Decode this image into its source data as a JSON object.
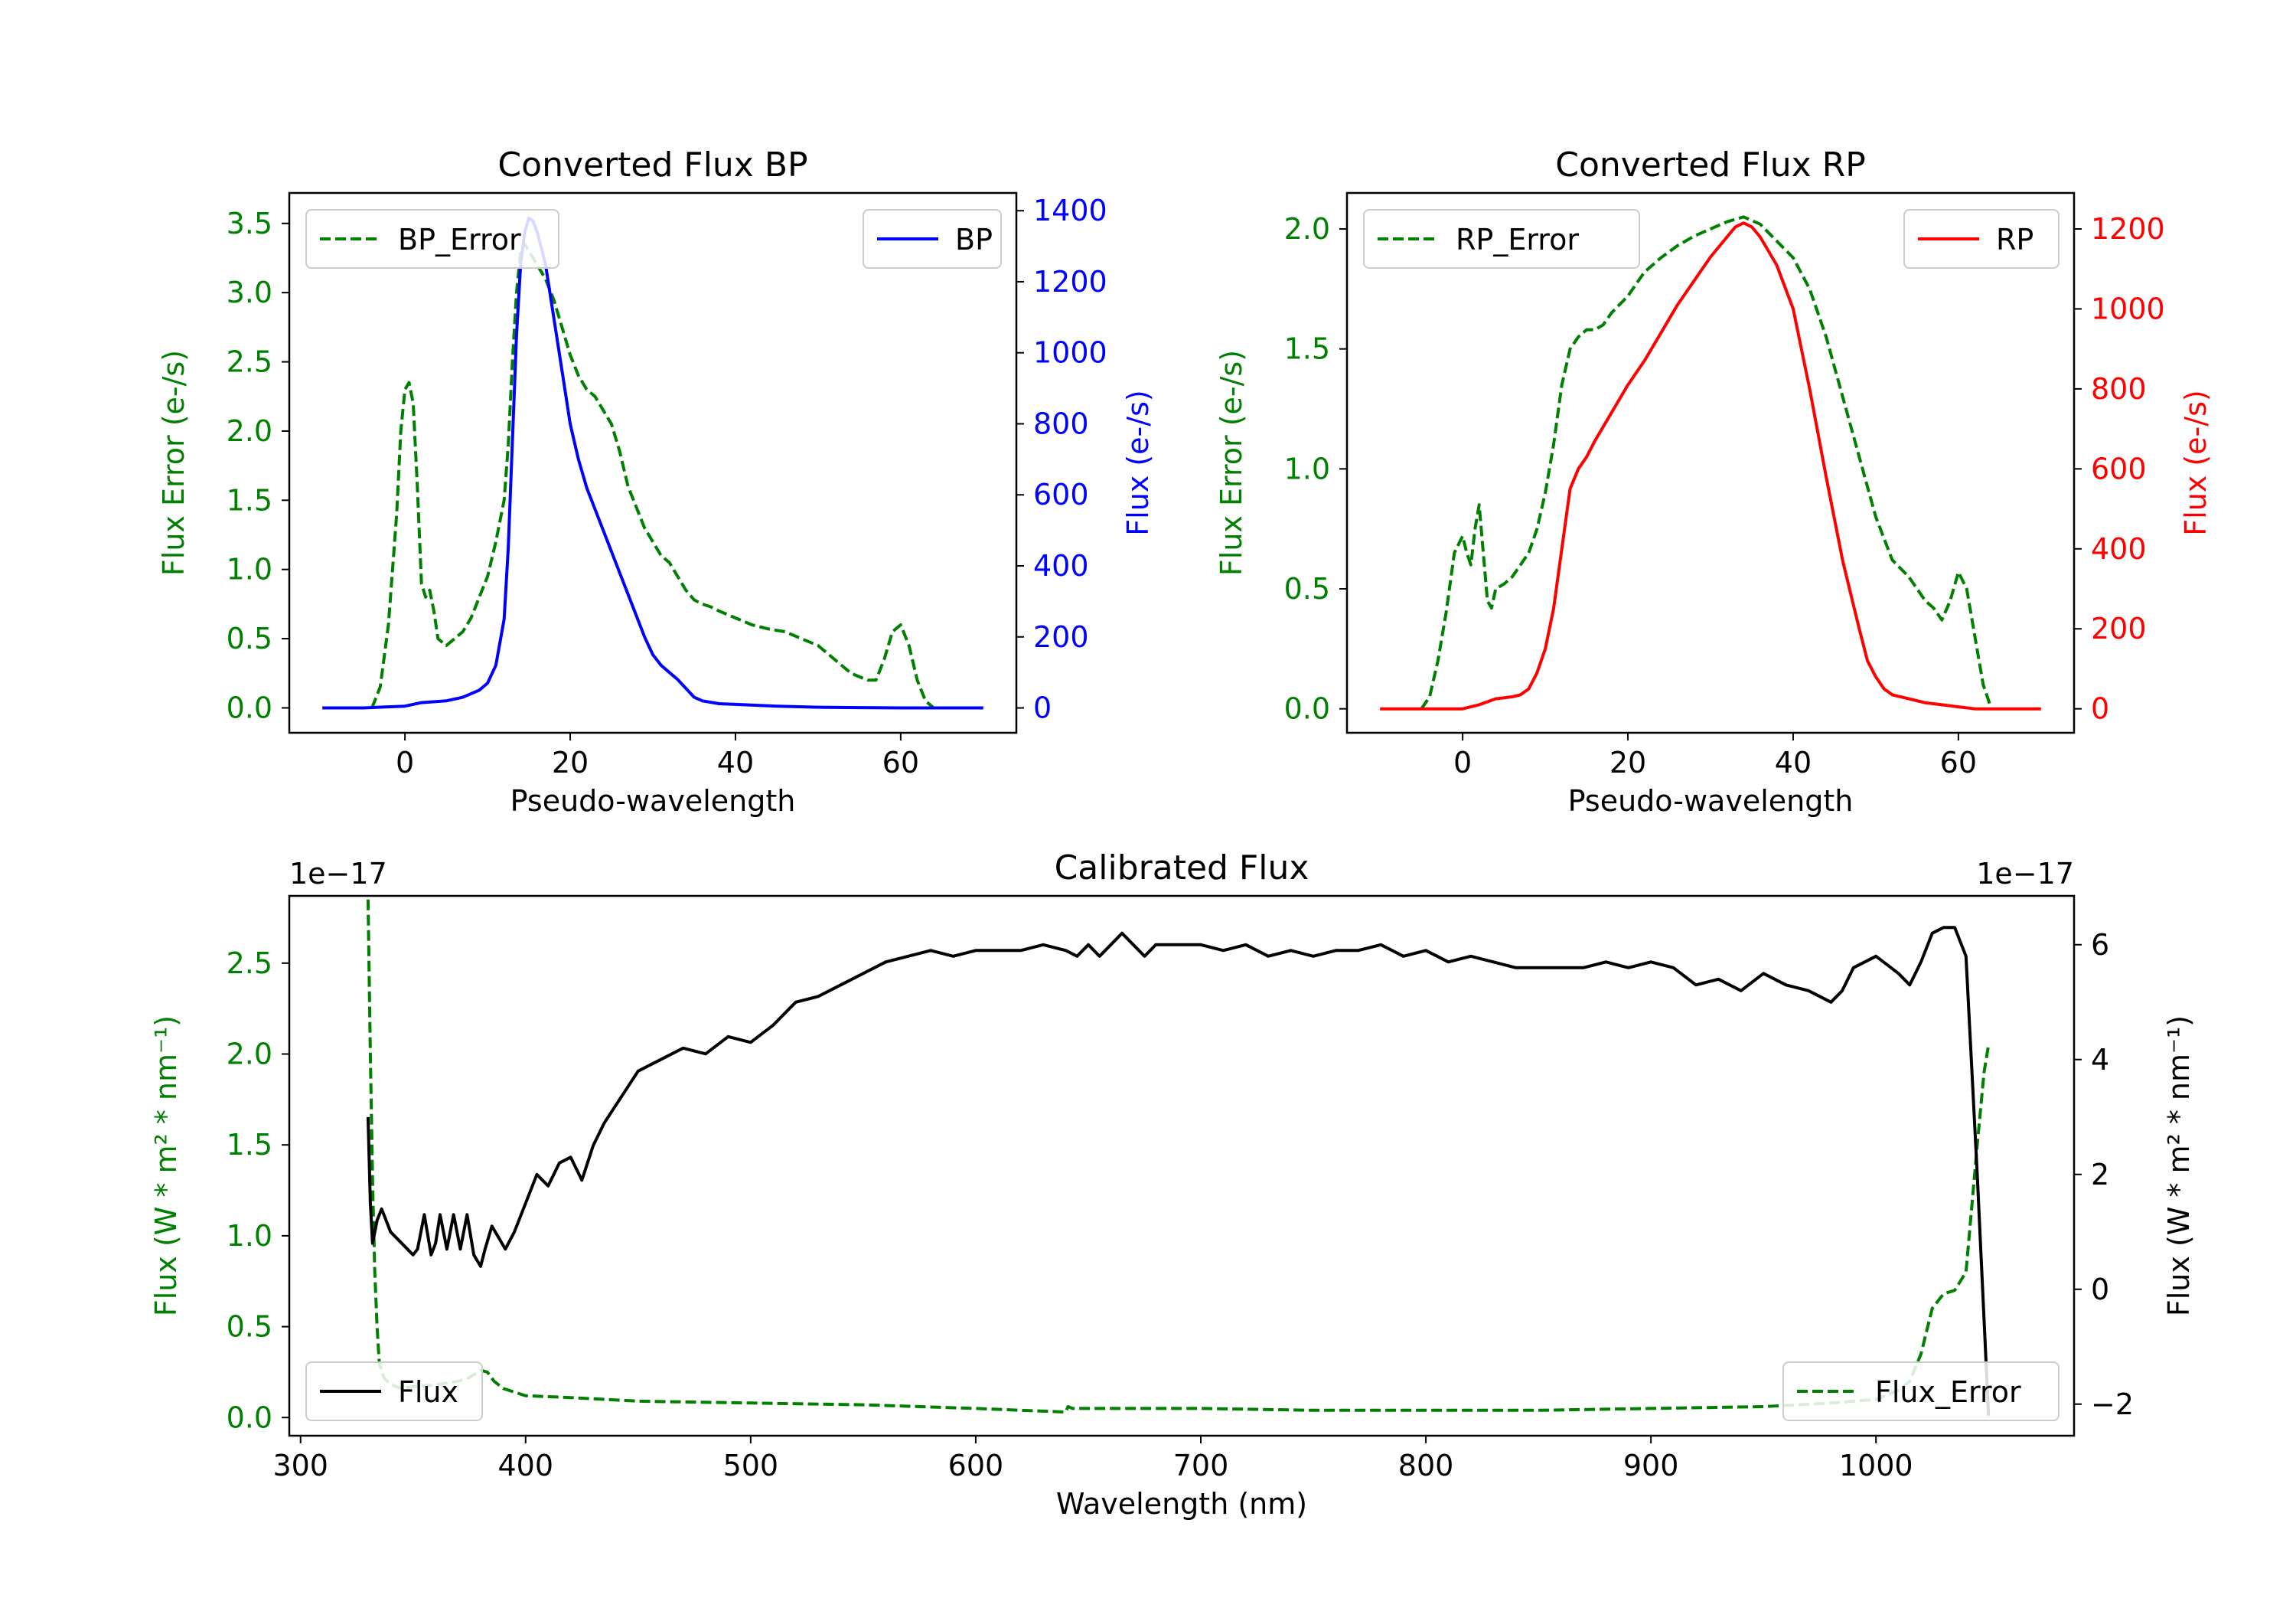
{
  "chart_data": [
    {
      "type": "line",
      "title": "Converted Flux BP",
      "xlabel": "Pseudo-wavelength",
      "ylabel_left": "Flux Error (e-/s)",
      "ylabel_right": "Flux (e-/s)",
      "xlim": [
        -14,
        74
      ],
      "ylim_left": [
        -0.18,
        3.72
      ],
      "ylim_right": [
        -70,
        1450
      ],
      "xticks": [
        0,
        20,
        40,
        60
      ],
      "xtick_labels": [
        "0",
        "20",
        "40",
        "60"
      ],
      "yticks_left": [
        0.0,
        0.5,
        1.0,
        1.5,
        2.0,
        2.5,
        3.0,
        3.5
      ],
      "ytick_labels_left": [
        "0.0",
        "0.5",
        "1.0",
        "1.5",
        "2.0",
        "2.5",
        "3.0",
        "3.5"
      ],
      "yticks_right": [
        0,
        200,
        400,
        600,
        800,
        1000,
        1200,
        1400
      ],
      "ytick_labels_right": [
        "0",
        "200",
        "400",
        "600",
        "800",
        "1000",
        "1200",
        "1400"
      ],
      "left_color": "#008000",
      "right_color": "#0000ff",
      "legend_left": "BP_Error",
      "legend_right": "BP",
      "series": [
        {
          "name": "BP_Error",
          "axis": "left",
          "style": "dashed",
          "color": "#008000",
          "x": [
            -4,
            -3,
            -2,
            -1,
            -0.5,
            0,
            0.5,
            1,
            1.5,
            2,
            2.5,
            3,
            3.5,
            4,
            5,
            6,
            7,
            8,
            9,
            10,
            11,
            12,
            12.5,
            13,
            13.5,
            14,
            14.5,
            15,
            15.5,
            16,
            17,
            18,
            19,
            20,
            21,
            22,
            23,
            24,
            25,
            26,
            27,
            28,
            29,
            30,
            31,
            32,
            33,
            34,
            35,
            36,
            37,
            38,
            40,
            42,
            44,
            46,
            48,
            50,
            52,
            54,
            56,
            57,
            58,
            59,
            60,
            61,
            62,
            63,
            64
          ],
          "y": [
            0.0,
            0.15,
            0.6,
            1.4,
            2.0,
            2.3,
            2.35,
            2.2,
            1.6,
            0.9,
            0.8,
            0.85,
            0.7,
            0.5,
            0.45,
            0.5,
            0.55,
            0.65,
            0.8,
            0.95,
            1.2,
            1.5,
            1.9,
            2.5,
            3.0,
            3.3,
            3.35,
            3.3,
            3.25,
            3.2,
            3.1,
            2.95,
            2.75,
            2.55,
            2.4,
            2.3,
            2.25,
            2.15,
            2.05,
            1.85,
            1.6,
            1.45,
            1.3,
            1.2,
            1.1,
            1.05,
            0.95,
            0.85,
            0.78,
            0.75,
            0.73,
            0.7,
            0.65,
            0.6,
            0.57,
            0.55,
            0.5,
            0.45,
            0.35,
            0.25,
            0.2,
            0.2,
            0.35,
            0.55,
            0.6,
            0.45,
            0.2,
            0.05,
            0.0
          ]
        },
        {
          "name": "BP",
          "axis": "right",
          "style": "solid",
          "color": "#0000ff",
          "x": [
            -10,
            -5,
            0,
            2,
            5,
            7,
            9,
            10,
            11,
            12,
            12.5,
            13,
            13.5,
            14,
            14.5,
            15,
            15.5,
            16,
            17,
            18,
            19,
            20,
            21,
            22,
            23,
            24,
            25,
            26,
            27,
            28,
            29,
            30,
            31,
            32,
            33,
            34,
            35,
            36,
            38,
            40,
            45,
            50,
            55,
            60,
            65,
            70
          ],
          "y": [
            0,
            0,
            5,
            15,
            20,
            30,
            50,
            70,
            120,
            250,
            450,
            750,
            1050,
            1250,
            1340,
            1380,
            1370,
            1340,
            1250,
            1100,
            950,
            800,
            700,
            620,
            560,
            500,
            440,
            380,
            320,
            260,
            200,
            150,
            120,
            100,
            80,
            55,
            30,
            20,
            12,
            10,
            5,
            2,
            1,
            0,
            0,
            0
          ]
        }
      ]
    },
    {
      "type": "line",
      "title": "Converted Flux RP",
      "xlabel": "Pseudo-wavelength",
      "ylabel_left": "Flux Error (e-/s)",
      "ylabel_right": "Flux (e-/s)",
      "xlim": [
        -14,
        74
      ],
      "ylim_left": [
        -0.1,
        2.15
      ],
      "ylim_right": [
        -60,
        1290
      ],
      "xticks": [
        0,
        20,
        40,
        60
      ],
      "xtick_labels": [
        "0",
        "20",
        "40",
        "60"
      ],
      "yticks_left": [
        0.0,
        0.5,
        1.0,
        1.5,
        2.0
      ],
      "ytick_labels_left": [
        "0.0",
        "0.5",
        "1.0",
        "1.5",
        "2.0"
      ],
      "yticks_right": [
        0,
        200,
        400,
        600,
        800,
        1000,
        1200
      ],
      "ytick_labels_right": [
        "0",
        "200",
        "400",
        "600",
        "800",
        "1000",
        "1200"
      ],
      "left_color": "#008000",
      "right_color": "#ff0000",
      "legend_left": "RP_Error",
      "legend_right": "RP",
      "series": [
        {
          "name": "RP_Error",
          "axis": "left",
          "style": "dashed",
          "color": "#008000",
          "x": [
            -5,
            -4,
            -3,
            -2,
            -1,
            0,
            0.5,
            1,
            1.5,
            2,
            2.5,
            3,
            3.5,
            4,
            5,
            6,
            7,
            8,
            9,
            10,
            11,
            12,
            13,
            14,
            15,
            16,
            17,
            18,
            20,
            22,
            24,
            26,
            28,
            30,
            32,
            34,
            36,
            38,
            40,
            42,
            44,
            46,
            48,
            50,
            52,
            54,
            55,
            56,
            57,
            58,
            59,
            60,
            61,
            62,
            63,
            64
          ],
          "y": [
            0.0,
            0.05,
            0.2,
            0.4,
            0.65,
            0.72,
            0.65,
            0.6,
            0.75,
            0.85,
            0.65,
            0.45,
            0.42,
            0.5,
            0.52,
            0.55,
            0.6,
            0.65,
            0.75,
            0.9,
            1.1,
            1.35,
            1.5,
            1.55,
            1.58,
            1.58,
            1.6,
            1.65,
            1.72,
            1.82,
            1.88,
            1.93,
            1.97,
            2.0,
            2.03,
            2.05,
            2.02,
            1.95,
            1.88,
            1.75,
            1.55,
            1.3,
            1.05,
            0.8,
            0.62,
            0.55,
            0.5,
            0.45,
            0.42,
            0.37,
            0.45,
            0.57,
            0.5,
            0.3,
            0.1,
            0.0
          ]
        },
        {
          "name": "RP",
          "axis": "right",
          "style": "solid",
          "color": "#ff0000",
          "x": [
            -10,
            -5,
            -2,
            0,
            2,
            4,
            6,
            7,
            8,
            9,
            10,
            11,
            12,
            13,
            14,
            15,
            16,
            18,
            20,
            22,
            24,
            26,
            28,
            30,
            32,
            33,
            34,
            35,
            36,
            38,
            40,
            42,
            44,
            46,
            48,
            49,
            50,
            51,
            52,
            54,
            56,
            58,
            60,
            62,
            65,
            70
          ],
          "y": [
            0,
            0,
            0,
            0,
            10,
            25,
            30,
            35,
            50,
            90,
            150,
            250,
            400,
            550,
            600,
            630,
            670,
            740,
            810,
            870,
            940,
            1010,
            1070,
            1130,
            1180,
            1205,
            1215,
            1205,
            1180,
            1110,
            1000,
            800,
            580,
            370,
            200,
            120,
            80,
            50,
            35,
            25,
            15,
            10,
            5,
            0,
            0,
            0
          ]
        }
      ]
    },
    {
      "type": "line",
      "title": "Calibrated Flux",
      "xlabel": "Wavelength (nm)",
      "ylabel_left": "Flux (W * m² * nm⁻¹)",
      "ylabel_right": "Flux (W * m² * nm⁻¹)",
      "offset_left": "1e−17",
      "offset_right": "1e−17",
      "xlim": [
        295,
        1088
      ],
      "ylim_left": [
        -0.1,
        2.87
      ],
      "ylim_right": [
        -2.55,
        6.85
      ],
      "xticks": [
        300,
        400,
        500,
        600,
        700,
        800,
        900,
        1000
      ],
      "xtick_labels": [
        "300",
        "400",
        "500",
        "600",
        "700",
        "800",
        "900",
        "1000"
      ],
      "yticks_left": [
        0.0,
        0.5,
        1.0,
        1.5,
        2.0,
        2.5
      ],
      "ytick_labels_left": [
        "0.0",
        "0.5",
        "1.0",
        "1.5",
        "2.0",
        "2.5"
      ],
      "yticks_right": [
        -2,
        0,
        2,
        4,
        6
      ],
      "ytick_labels_right": [
        "−2",
        "0",
        "2",
        "4",
        "6"
      ],
      "left_color": "#008000",
      "right_color": "#000000",
      "legend_left": "Flux",
      "legend_right": "Flux_Error",
      "series": [
        {
          "name": "Flux_Error",
          "axis": "left",
          "style": "dashed",
          "color": "#008000",
          "x": [
            330,
            331,
            332,
            333,
            334,
            335,
            337,
            340,
            345,
            350,
            360,
            370,
            375,
            380,
            383,
            386,
            390,
            395,
            400,
            420,
            450,
            500,
            550,
            600,
            640,
            641,
            643,
            650,
            700,
            750,
            800,
            850,
            900,
            950,
            980,
            1000,
            1010,
            1015,
            1020,
            1025,
            1030,
            1035,
            1040,
            1045,
            1048,
            1050
          ],
          "y": [
            2.85,
            2.0,
            1.3,
            0.8,
            0.5,
            0.3,
            0.22,
            0.18,
            0.16,
            0.17,
            0.18,
            0.2,
            0.22,
            0.26,
            0.25,
            0.2,
            0.16,
            0.14,
            0.12,
            0.11,
            0.09,
            0.08,
            0.07,
            0.05,
            0.03,
            0.06,
            0.05,
            0.05,
            0.05,
            0.04,
            0.04,
            0.04,
            0.05,
            0.06,
            0.08,
            0.1,
            0.15,
            0.2,
            0.35,
            0.6,
            0.68,
            0.7,
            0.8,
            1.5,
            1.9,
            2.05
          ]
        },
        {
          "name": "Flux",
          "axis": "right",
          "style": "solid",
          "color": "#000000",
          "x": [
            330,
            331,
            332,
            334,
            336,
            338,
            340,
            345,
            350,
            352,
            355,
            358,
            360,
            362,
            365,
            368,
            371,
            374,
            377,
            380,
            382,
            385,
            388,
            391,
            395,
            400,
            405,
            410,
            415,
            420,
            425,
            430,
            435,
            440,
            445,
            450,
            460,
            470,
            480,
            490,
            500,
            510,
            520,
            530,
            540,
            550,
            560,
            570,
            580,
            590,
            600,
            610,
            620,
            630,
            640,
            645,
            650,
            655,
            660,
            665,
            670,
            675,
            680,
            690,
            700,
            710,
            720,
            730,
            740,
            750,
            760,
            770,
            780,
            790,
            800,
            810,
            820,
            830,
            840,
            850,
            860,
            870,
            880,
            890,
            900,
            910,
            920,
            930,
            940,
            950,
            960,
            970,
            980,
            985,
            990,
            1000,
            1010,
            1015,
            1020,
            1025,
            1030,
            1035,
            1040,
            1045,
            1050
          ],
          "y": [
            3.0,
            1.5,
            0.8,
            1.2,
            1.4,
            1.2,
            1.0,
            0.8,
            0.6,
            0.7,
            1.3,
            0.6,
            0.8,
            1.3,
            0.7,
            1.3,
            0.7,
            1.3,
            0.6,
            0.4,
            0.7,
            1.1,
            0.9,
            0.7,
            1.0,
            1.5,
            2.0,
            1.8,
            2.2,
            2.3,
            1.9,
            2.5,
            2.9,
            3.2,
            3.5,
            3.8,
            4.0,
            4.2,
            4.1,
            4.4,
            4.3,
            4.6,
            5.0,
            5.1,
            5.3,
            5.5,
            5.7,
            5.8,
            5.9,
            5.8,
            5.9,
            5.9,
            5.9,
            6.0,
            5.9,
            5.8,
            6.0,
            5.8,
            6.0,
            6.2,
            6.0,
            5.8,
            6.0,
            6.0,
            6.0,
            5.9,
            6.0,
            5.8,
            5.9,
            5.8,
            5.9,
            5.9,
            6.0,
            5.8,
            5.9,
            5.7,
            5.8,
            5.7,
            5.6,
            5.6,
            5.6,
            5.6,
            5.7,
            5.6,
            5.7,
            5.6,
            5.3,
            5.4,
            5.2,
            5.5,
            5.3,
            5.2,
            5.0,
            5.2,
            5.6,
            5.8,
            5.5,
            5.3,
            5.7,
            6.2,
            6.3,
            6.3,
            5.8,
            2.0,
            -2.2
          ]
        }
      ]
    }
  ]
}
